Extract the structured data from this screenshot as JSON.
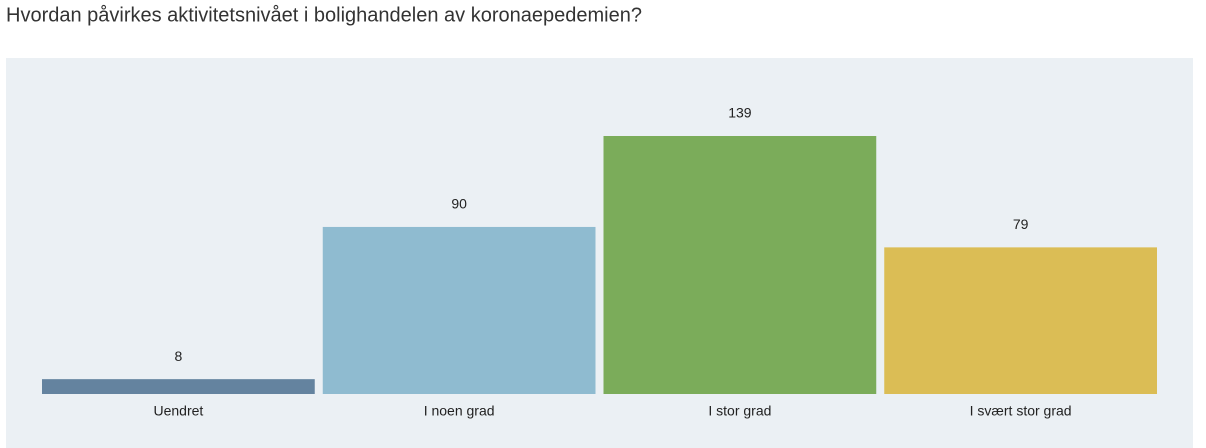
{
  "chart_data": {
    "type": "bar",
    "title": "Hvordan påvirkes aktivitetsnivået i bolighandelen av koronaepedemien?",
    "categories": [
      "Uendret",
      "I noen grad",
      "I stor grad",
      "I svært stor grad"
    ],
    "values": [
      8,
      90,
      139,
      79
    ],
    "colors": [
      "#64839f",
      "#8fbbd0",
      "#7bac5a",
      "#dbbd55"
    ]
  }
}
